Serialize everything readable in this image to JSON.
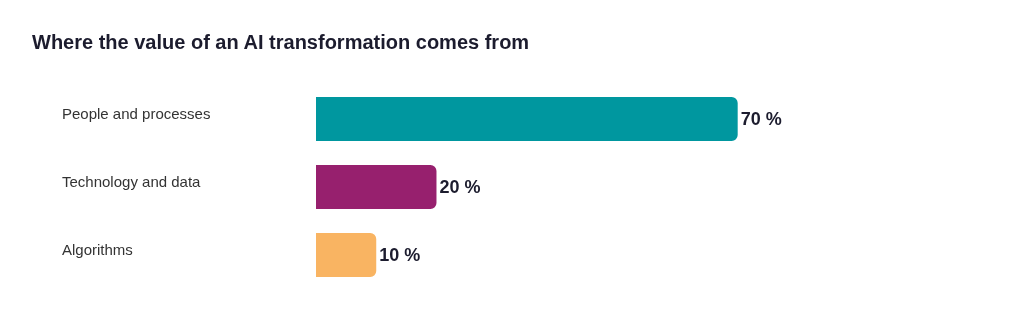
{
  "chart_data": {
    "type": "bar",
    "orientation": "horizontal",
    "title": "Where the value of an AI transformation comes from",
    "categories": [
      "People and processes",
      "Technology and data",
      "Algorithms"
    ],
    "values": [
      70,
      20,
      10
    ],
    "colors": [
      "#00979f",
      "#97206e",
      "#f9b462"
    ],
    "value_labels": [
      "70 %",
      "20 %",
      "10 %"
    ],
    "grid": false,
    "legend": false
  }
}
